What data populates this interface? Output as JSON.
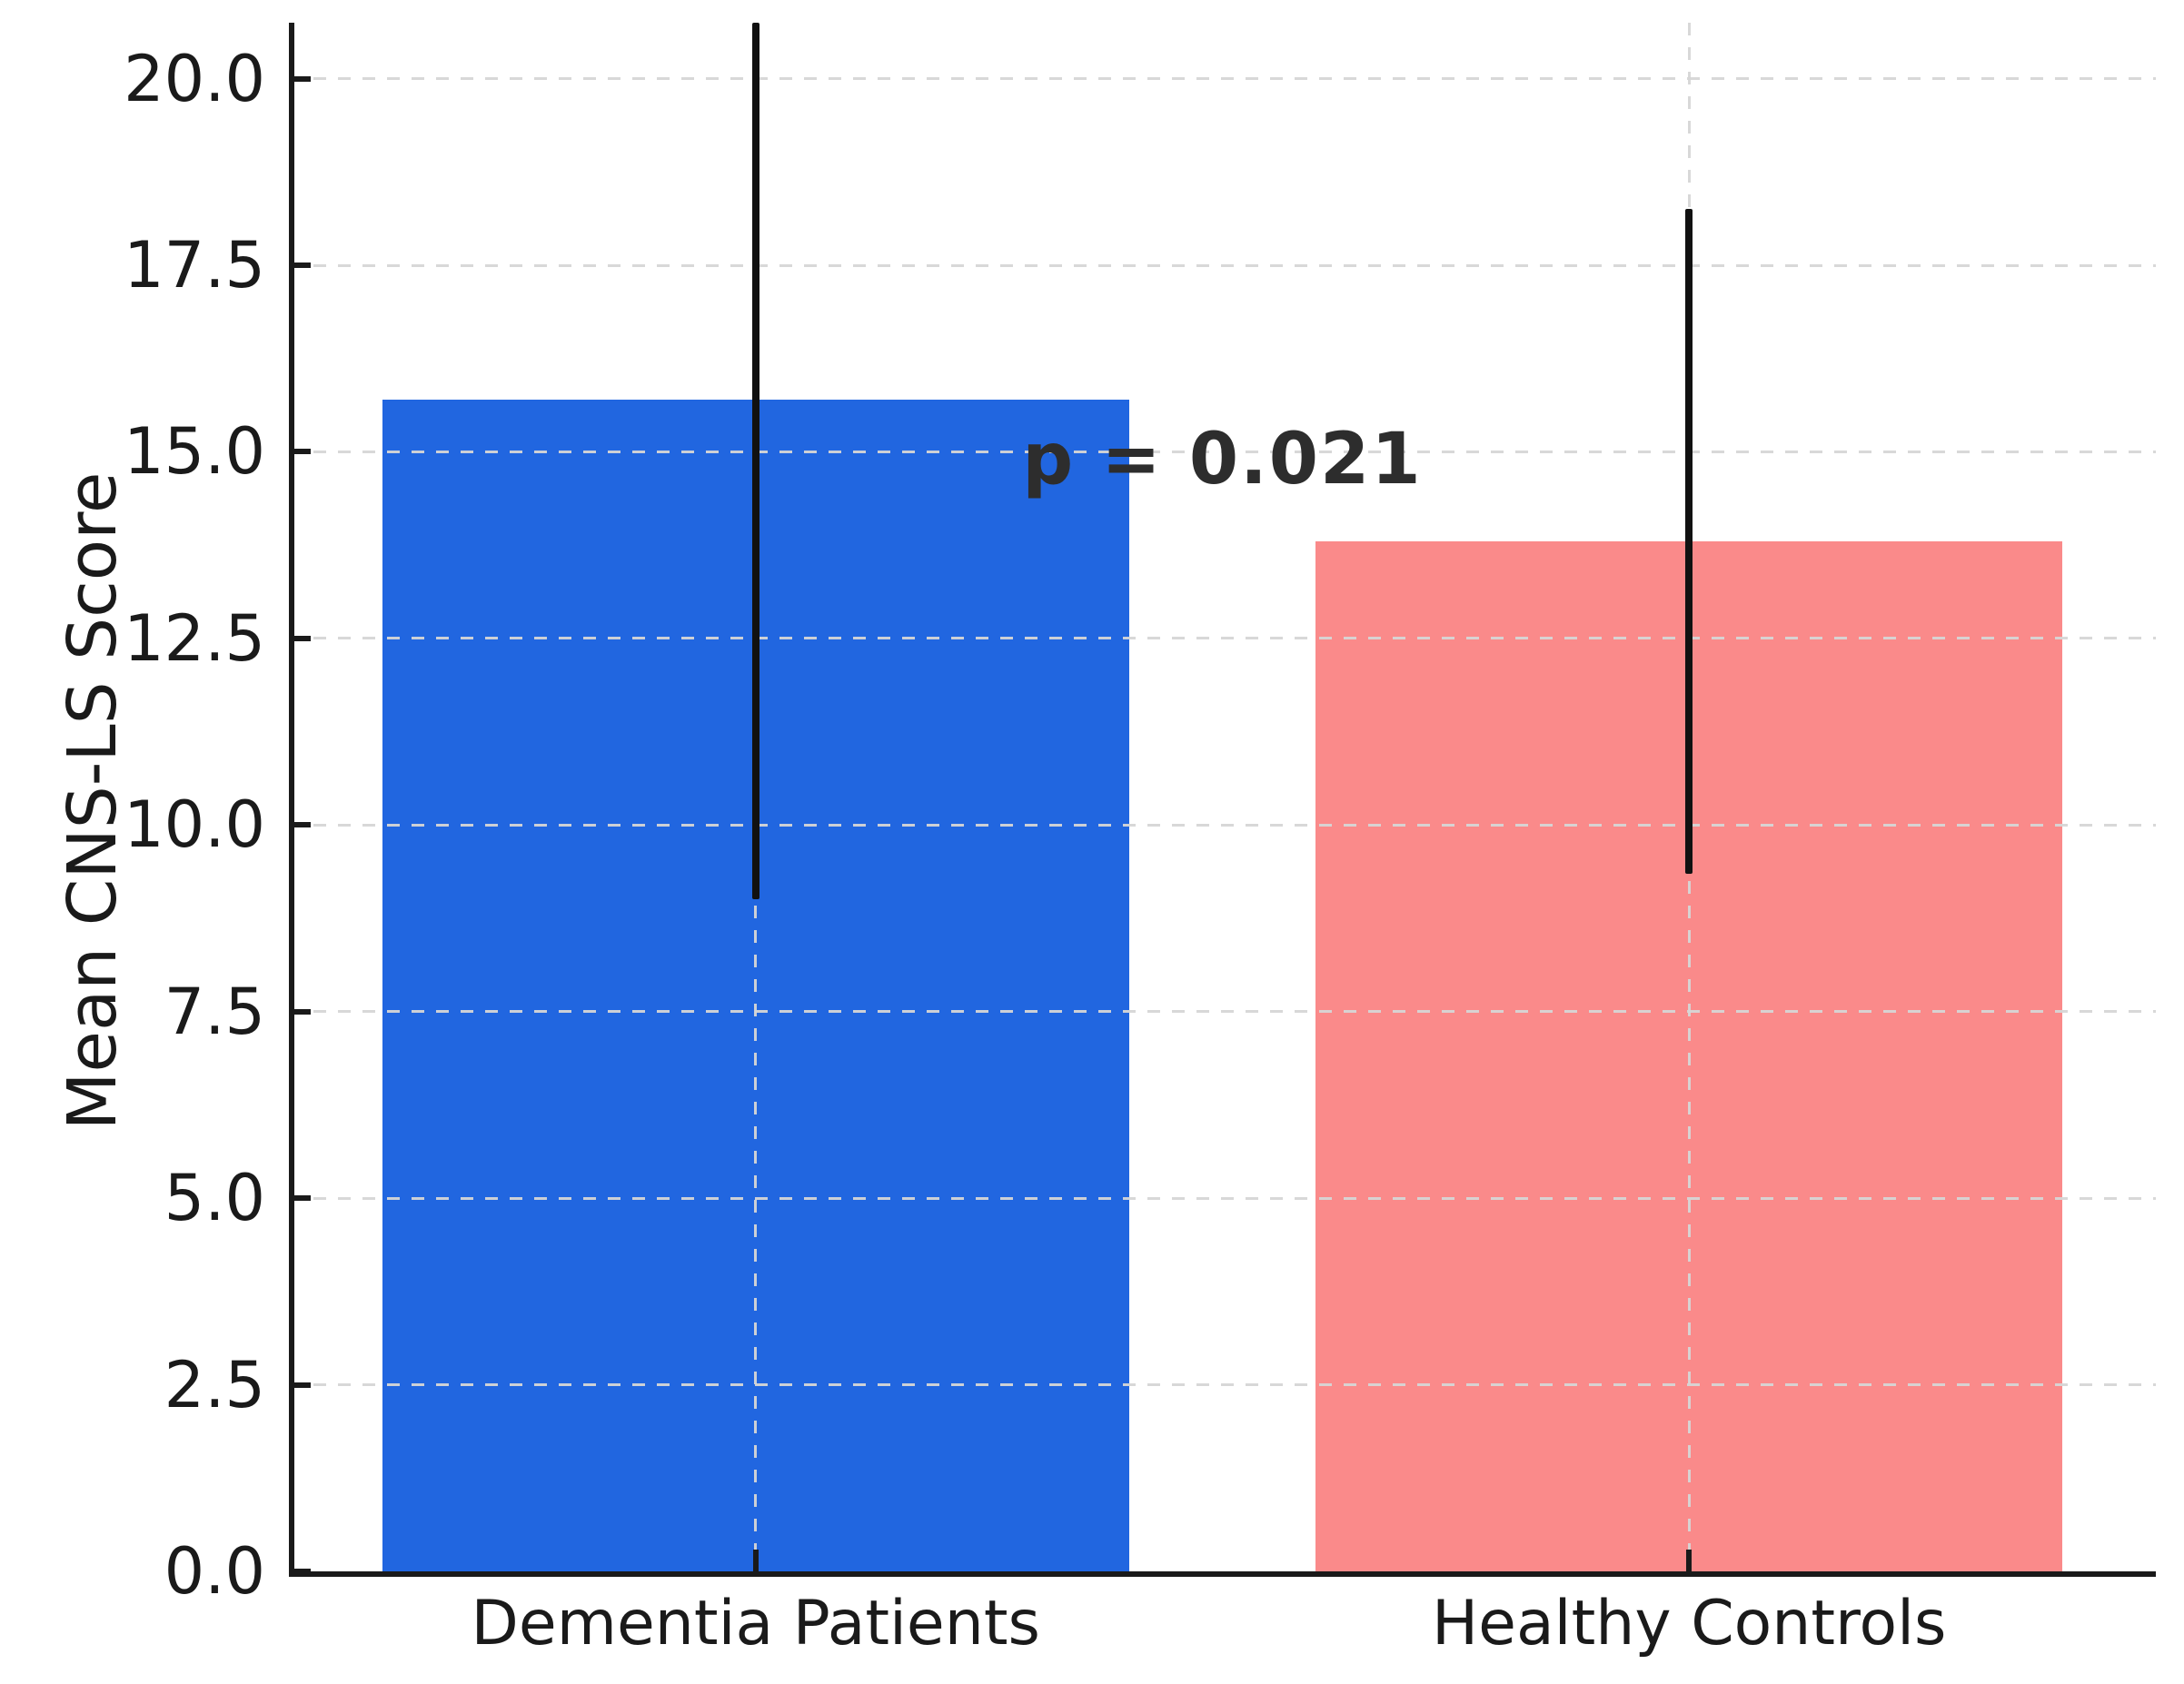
{
  "chart_data": {
    "type": "bar",
    "title": "",
    "xlabel": "",
    "ylabel": "Mean CNS-LS Score",
    "categories": [
      "Dementia Patients",
      "Healthy Controls"
    ],
    "values": [
      15.7,
      13.8
    ],
    "errors": [
      6.7,
      4.45
    ],
    "bar_colors": [
      "#2166e0",
      "#fa8a8a"
    ],
    "bar_width": 0.8,
    "xlim": [
      -0.5,
      1.5
    ],
    "ylim": [
      0,
      20.75
    ],
    "yticks": [
      0.0,
      2.5,
      5.0,
      7.5,
      10.0,
      12.5,
      15.0,
      17.5,
      20.0
    ],
    "ytick_labels": [
      "0.0",
      "2.5",
      "5.0",
      "7.5",
      "10.0",
      "12.5",
      "15.0",
      "17.5",
      "20.0"
    ],
    "grid": {
      "style": "dashed",
      "axes": "both",
      "color": "#d6d6d6",
      "above_bars": true
    },
    "error_bar_color": "#111111",
    "error_caps": false,
    "legend": null,
    "annotation": {
      "text": "p = 0.021",
      "x": 0.5,
      "y": 14.9
    }
  },
  "styles": {
    "background": "#ffffff",
    "axis_color": "#1a1a1a",
    "annotation_color": "#2d2d2d"
  }
}
